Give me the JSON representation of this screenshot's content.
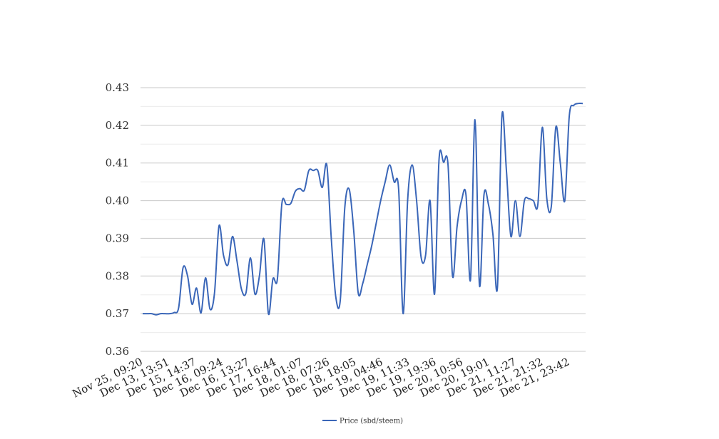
{
  "chart_data": {
    "type": "line",
    "title": "",
    "xlabel": "",
    "ylabel": "",
    "ylim": [
      0.36,
      0.43
    ],
    "y_ticks": [
      "0.36",
      "0.37",
      "0.38",
      "0.39",
      "0.40",
      "0.41",
      "0.42",
      "0.43"
    ],
    "x_tick_labels": [
      "Nov 25, 09:20",
      "Dec 13, 13:51",
      "Dec 15, 14:37",
      "Dec 16, 09:24",
      "Dec 16, 13:27",
      "Dec 17, 16:44",
      "Dec 18, 01:07",
      "Dec 18, 07:26",
      "Dec 18, 18:05",
      "Dec 19, 04:46",
      "Dec 19, 11:33",
      "Dec 19, 19:36",
      "Dec 20, 10:56",
      "Dec 20, 19:01",
      "Dec 21, 11:27",
      "Dec 21, 21:32",
      "Dec 21, 23:42"
    ],
    "grid": true,
    "legend_position": "bottom",
    "series": [
      {
        "name": "Price (sbd/steem)",
        "color": "#3a66b8",
        "values": [
          0.37,
          0.37,
          0.37,
          0.3697,
          0.37,
          0.37,
          0.37,
          0.3703,
          0.3715,
          0.3822,
          0.38,
          0.3725,
          0.3768,
          0.3702,
          0.3795,
          0.3712,
          0.3755,
          0.3933,
          0.3855,
          0.383,
          0.3905,
          0.384,
          0.3765,
          0.3755,
          0.3848,
          0.3752,
          0.38,
          0.3898,
          0.37,
          0.3792,
          0.3792,
          0.3992,
          0.399,
          0.3993,
          0.4025,
          0.4032,
          0.4028,
          0.408,
          0.408,
          0.408,
          0.4035,
          0.4095,
          0.39,
          0.3745,
          0.3735,
          0.398,
          0.403,
          0.392,
          0.3755,
          0.378,
          0.383,
          0.388,
          0.394,
          0.4,
          0.405,
          0.4095,
          0.405,
          0.403,
          0.37,
          0.4,
          0.4095,
          0.4,
          0.385,
          0.3855,
          0.4,
          0.3752,
          0.411,
          0.4102,
          0.4095,
          0.38,
          0.393,
          0.4,
          0.4015,
          0.379,
          0.4215,
          0.3775,
          0.4015,
          0.399,
          0.391,
          0.377,
          0.4225,
          0.408,
          0.3905,
          0.4,
          0.3905,
          0.4,
          0.4005,
          0.4,
          0.399,
          0.4195,
          0.4005,
          0.3985,
          0.4195,
          0.41,
          0.4,
          0.4225,
          0.4253,
          0.4258,
          0.4258
        ]
      }
    ]
  }
}
